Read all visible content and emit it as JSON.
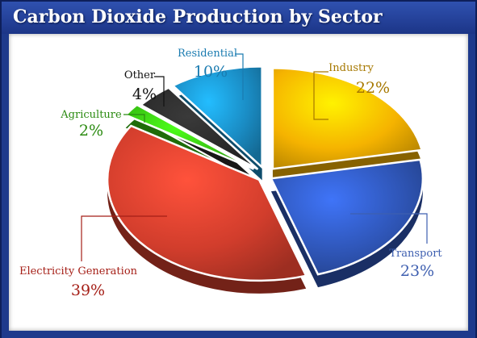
{
  "chart_data": {
    "type": "pie",
    "title": "Carbon Dioxide Production by Sector",
    "slices": [
      {
        "label": "Industry",
        "value": 22,
        "value_text": "22%",
        "color": "#f5b300",
        "label_color": "#a67800"
      },
      {
        "label": "Transport",
        "value": 23,
        "value_text": "23%",
        "color": "#2f56b8",
        "label_color": "#3e5fb0"
      },
      {
        "label": "Electricity Generation",
        "value": 39,
        "value_text": "39%",
        "color": "#d13d2c",
        "label_color": "#a51f17"
      },
      {
        "label": "Agriculture",
        "value": 2,
        "value_text": "2%",
        "color": "#39c413",
        "label_color": "#2a8a10"
      },
      {
        "label": "Other",
        "value": 4,
        "value_text": "4%",
        "color": "#2b2b2b",
        "label_color": "#111111"
      },
      {
        "label": "Residential",
        "value": 10,
        "value_text": "10%",
        "color": "#1a8cc4",
        "label_color": "#1a7bb0"
      }
    ],
    "start_angle": "12 o'clock",
    "direction": "clockwise",
    "legend": "none"
  }
}
